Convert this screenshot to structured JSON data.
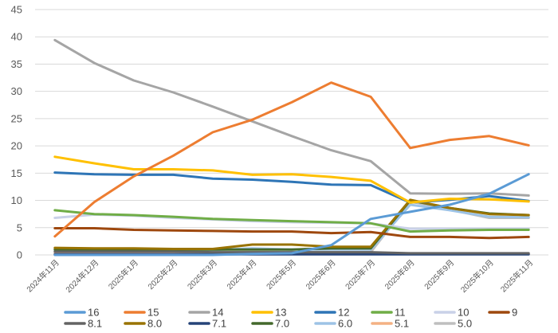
{
  "chart_data": {
    "type": "line",
    "title": "",
    "xlabel": "",
    "ylabel": "",
    "ylim": [
      0,
      45
    ],
    "yticks": [
      0,
      5,
      10,
      15,
      20,
      25,
      30,
      35,
      40,
      45
    ],
    "grid": true,
    "legend_position": "bottom",
    "categories": [
      "2024年11月",
      "2024年12月",
      "2025年1月",
      "2025年2月",
      "2025年3月",
      "2025年4月",
      "2025年5月",
      "2025年6月",
      "2025年7月",
      "2025年8月",
      "2025年9月",
      "2025年10月",
      "2025年11月"
    ],
    "series": [
      {
        "name": "16",
        "color": "#5b9bd5",
        "values": [
          0,
          0,
          0,
          0,
          0,
          0.2,
          0.3,
          1.8,
          6.6,
          7.9,
          9.2,
          11.2,
          14.8
        ]
      },
      {
        "name": "15",
        "color": "#ed7d31",
        "values": [
          3.4,
          9.7,
          14.4,
          18.2,
          22.5,
          24.8,
          28.0,
          31.6,
          29.0,
          19.6,
          21.1,
          21.8,
          20.1
        ]
      },
      {
        "name": "14",
        "color": "#a5a5a5",
        "values": [
          39.4,
          35.2,
          32.0,
          29.8,
          27.2,
          24.5,
          21.8,
          19.2,
          17.2,
          11.3,
          11.2,
          11.3,
          10.9
        ]
      },
      {
        "name": "13",
        "color": "#ffc000",
        "values": [
          18.0,
          16.8,
          15.7,
          15.7,
          15.5,
          14.7,
          14.8,
          14.3,
          13.6,
          9.6,
          10.3,
          10.2,
          9.8
        ]
      },
      {
        "name": "12",
        "color": "#2e75b6",
        "values": [
          15.1,
          14.8,
          14.7,
          14.7,
          14.0,
          13.8,
          13.4,
          12.9,
          12.8,
          9.6,
          10.1,
          10.8,
          9.9
        ]
      },
      {
        "name": "11",
        "color": "#70ad47",
        "values": [
          8.2,
          7.5,
          7.3,
          7.0,
          6.6,
          6.4,
          6.2,
          6.0,
          5.8,
          4.3,
          4.5,
          4.6,
          4.6
        ]
      },
      {
        "name": "10",
        "color": "#c9d1e8",
        "values": [
          6.8,
          7.4,
          7.2,
          6.8,
          6.5,
          6.2,
          6.0,
          5.9,
          5.8,
          4.8,
          4.8,
          4.8,
          4.8
        ]
      },
      {
        "name": "9",
        "color": "#9e480e",
        "values": [
          4.9,
          4.9,
          4.6,
          4.5,
          4.4,
          4.3,
          4.3,
          4.0,
          4.2,
          3.3,
          3.3,
          3.1,
          3.3
        ]
      },
      {
        "name": "8.1",
        "color": "#636363",
        "values": [
          0.6,
          0.6,
          0.6,
          0.6,
          0.5,
          0.5,
          0.5,
          0.5,
          0.5,
          0.3,
          0.3,
          0.3,
          0.3
        ]
      },
      {
        "name": "8.0",
        "color": "#997300",
        "values": [
          1.3,
          1.2,
          1.2,
          1.1,
          1.1,
          1.9,
          1.9,
          1.5,
          1.5,
          10.1,
          8.6,
          7.5,
          7.3
        ]
      },
      {
        "name": "7.1",
        "color": "#264478",
        "values": [
          0.1,
          0.1,
          0.1,
          0.1,
          0.1,
          0.1,
          0.1,
          0.1,
          0.1,
          0.1,
          0.1,
          0.1,
          0.1
        ]
      },
      {
        "name": "7.0",
        "color": "#43682b",
        "values": [
          1.0,
          1.0,
          1.0,
          1.0,
          1.0,
          1.0,
          1.0,
          1.2,
          1.2,
          10.0,
          8.6,
          7.6,
          7.3
        ]
      },
      {
        "name": "6.0",
        "color": "#9dc3e6",
        "values": [
          0.9,
          0.9,
          0.9,
          0.9,
          0.9,
          1.2,
          1.0,
          1.0,
          1.0,
          9.2,
          8.2,
          7.0,
          6.9
        ]
      },
      {
        "name": "5.1",
        "color": "#f4b183",
        "values": [
          0.2,
          0.2,
          0.2,
          0.2,
          0.2,
          0.2,
          0.2,
          0.2,
          0.2,
          0.2,
          0.2,
          0.2,
          0.2
        ]
      },
      {
        "name": "5.0",
        "color": "#bfbfbf",
        "values": [
          0.5,
          0.5,
          0.5,
          0.5,
          0.5,
          0.5,
          0.5,
          0.5,
          0.5,
          9.8,
          8.3,
          6.8,
          6.8
        ]
      }
    ]
  }
}
